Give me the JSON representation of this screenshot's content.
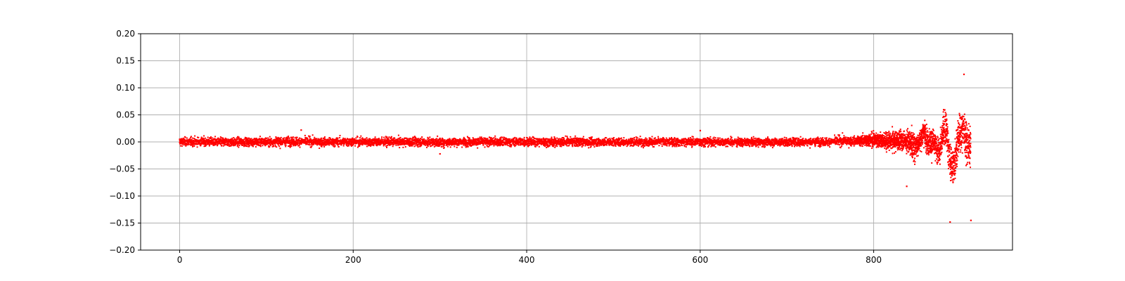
{
  "chart_data": {
    "type": "scatter",
    "title": "",
    "xlabel": "",
    "ylabel": "",
    "xlim": [
      -45,
      960
    ],
    "ylim": [
      -0.2,
      0.2
    ],
    "grid": true,
    "x_ticks": [
      0,
      200,
      400,
      600,
      800
    ],
    "y_ticks": [
      0.2,
      0.15,
      0.1,
      0.05,
      0.0,
      -0.05,
      -0.1,
      -0.15,
      -0.2
    ],
    "x_tick_labels": [
      "0",
      "200",
      "400",
      "600",
      "800"
    ],
    "y_tick_labels": [
      "0.20",
      "0.15",
      "0.10",
      "0.05",
      "0.00",
      "−0.05",
      "−0.10",
      "−0.15",
      "−0.20"
    ],
    "marker_color": "#ff0000",
    "series": [
      {
        "x": [
          0,
          25,
          50,
          75,
          100,
          125,
          150,
          175,
          200,
          225,
          250,
          275,
          300,
          325,
          350,
          375,
          400,
          425,
          450,
          475,
          500,
          525,
          550,
          575,
          600,
          625,
          650,
          675,
          700,
          725,
          750,
          765,
          775,
          785,
          795,
          805,
          815,
          825,
          835,
          842,
          846,
          852,
          858,
          862,
          866,
          870,
          876,
          880,
          884,
          888,
          892,
          896,
          900,
          904,
          908,
          912
        ],
        "y_max": [
          0.016,
          0.017,
          0.016,
          0.016,
          0.017,
          0.018,
          0.017,
          0.016,
          0.017,
          0.017,
          0.016,
          0.017,
          0.016,
          0.016,
          0.017,
          0.016,
          0.017,
          0.016,
          0.017,
          0.016,
          0.016,
          0.017,
          0.016,
          0.016,
          0.017,
          0.016,
          0.015,
          0.015,
          0.016,
          0.015,
          0.016,
          0.022,
          0.018,
          0.02,
          0.028,
          0.033,
          0.03,
          0.04,
          0.035,
          0.05,
          0.045,
          0.035,
          0.07,
          0.045,
          0.06,
          0.04,
          0.03,
          0.09,
          0.095,
          0.03,
          0.025,
          0.07,
          0.09,
          0.1,
          0.08,
          0.05
        ],
        "y_min": [
          -0.016,
          -0.016,
          -0.017,
          -0.016,
          -0.017,
          -0.016,
          -0.016,
          -0.017,
          -0.016,
          -0.017,
          -0.016,
          -0.017,
          -0.018,
          -0.016,
          -0.017,
          -0.016,
          -0.016,
          -0.017,
          -0.016,
          -0.017,
          -0.016,
          -0.017,
          -0.016,
          -0.016,
          -0.017,
          -0.016,
          -0.016,
          -0.016,
          -0.016,
          -0.015,
          -0.015,
          -0.018,
          -0.015,
          -0.016,
          -0.02,
          -0.025,
          -0.03,
          -0.035,
          -0.03,
          -0.05,
          -0.065,
          -0.04,
          -0.03,
          -0.045,
          -0.06,
          -0.05,
          -0.075,
          -0.04,
          -0.055,
          -0.1,
          -0.125,
          -0.08,
          -0.05,
          -0.06,
          -0.085,
          -0.07
        ]
      }
    ],
    "outliers": {
      "x": [
        904,
        888,
        912,
        140,
        300,
        600,
        838
      ],
      "y": [
        0.125,
        -0.148,
        -0.145,
        0.022,
        -0.022,
        0.021,
        -0.082
      ]
    }
  }
}
